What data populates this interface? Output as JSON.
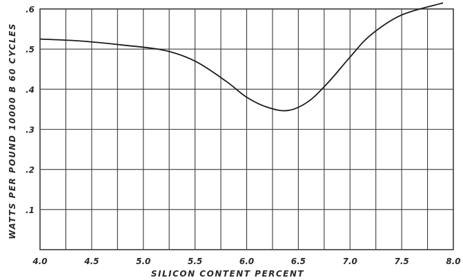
{
  "chart_data": {
    "type": "line",
    "title": "",
    "xlabel": "SILICON CONTENT PERCENT",
    "ylabel": "WATTS PER POUND 10000 B 60 CYCLES",
    "xlim": [
      4.0,
      8.0
    ],
    "ylim": [
      0.0,
      0.6
    ],
    "x_ticks": [
      4.0,
      4.5,
      5.0,
      5.5,
      6.0,
      6.5,
      7.0,
      7.5,
      8.0
    ],
    "x_tick_labels": [
      "4.0",
      "4.5",
      "5.0",
      "5.5",
      "6.0",
      "6.5",
      "7.0",
      "7.5",
      "8.0"
    ],
    "y_ticks": [
      0.1,
      0.2,
      0.3,
      0.4,
      0.5,
      0.6
    ],
    "y_tick_labels": [
      ".1",
      ".2",
      ".3",
      ".4",
      ".5",
      ".6"
    ],
    "grid": true,
    "series": [
      {
        "x": [
          4.0,
          4.4,
          4.8,
          5.2,
          5.5,
          5.8,
          6.0,
          6.2,
          6.4,
          6.6,
          6.8,
          7.0,
          7.2,
          7.5,
          7.9
        ],
        "y": [
          0.525,
          0.52,
          0.51,
          0.497,
          0.47,
          0.42,
          0.38,
          0.355,
          0.347,
          0.37,
          0.42,
          0.48,
          0.535,
          0.585,
          0.615
        ]
      }
    ],
    "colors": {
      "line": "#1a1a1a",
      "grid": "#3a3a3a"
    }
  }
}
